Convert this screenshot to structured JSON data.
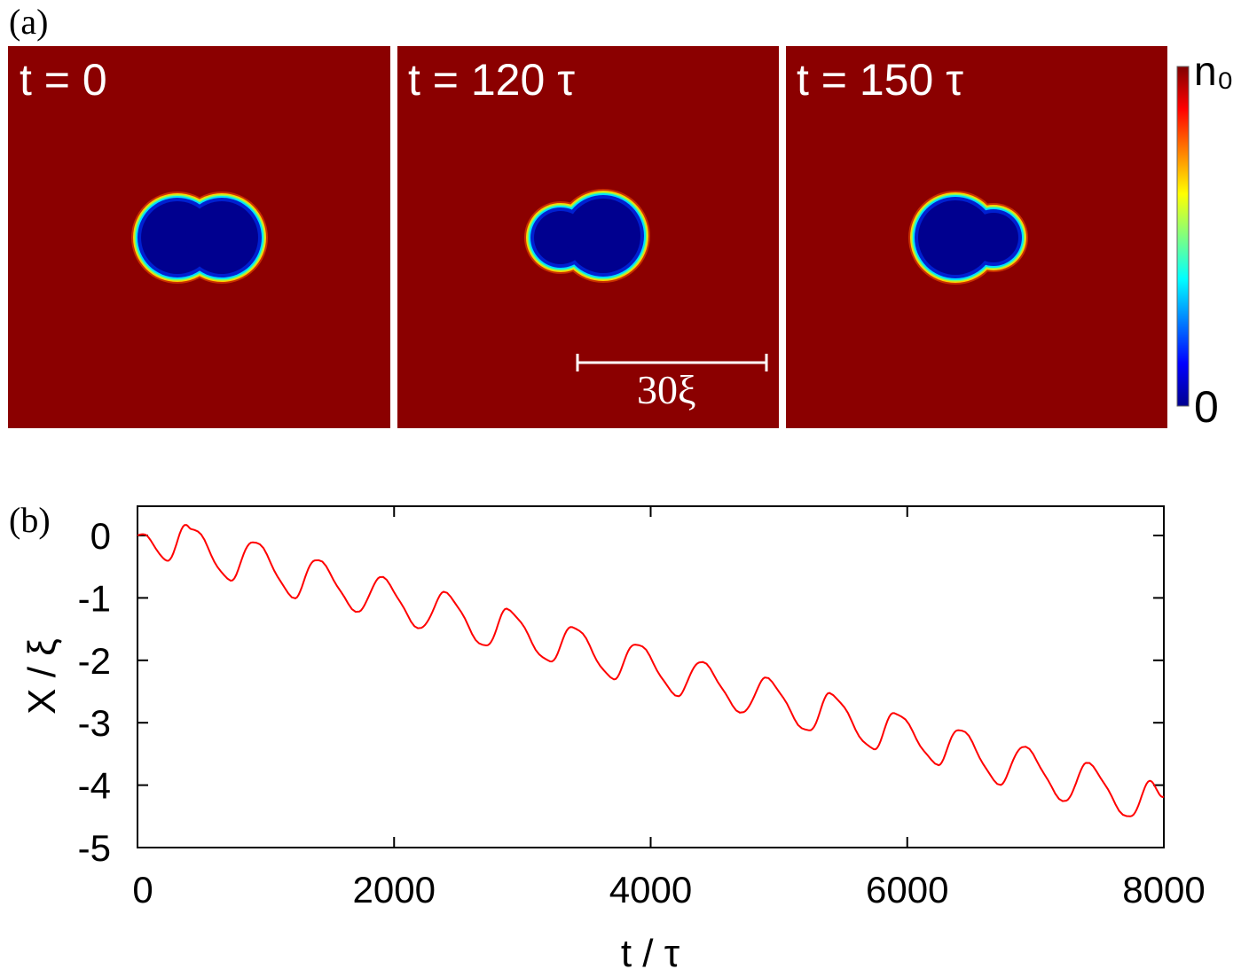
{
  "panel_a": {
    "label": "(a)",
    "frames": [
      {
        "title": "t = 0"
      },
      {
        "title": "t = 120 τ"
      },
      {
        "title": "t = 150 τ"
      }
    ],
    "scale_bar": "30ξ",
    "colorbar": {
      "max_label": "n₀",
      "min_label": "0"
    },
    "colors": {
      "background": "#8b0000",
      "core": "#00008f"
    }
  },
  "chart_data": {
    "type": "line",
    "panel_label": "(b)",
    "xlabel": "t / τ",
    "ylabel": "X / ξ",
    "xlim": [
      0,
      8000
    ],
    "ylim": [
      -5,
      0.5
    ],
    "xticks": [
      0,
      2000,
      4000,
      6000,
      8000
    ],
    "xtick_labels": [
      "0",
      "2000",
      "4000",
      "6000",
      "8000"
    ],
    "yticks": [
      0,
      -1,
      -2,
      -3,
      -4,
      -5
    ],
    "ytick_labels": [
      "0",
      "-1",
      "-2",
      "-3",
      "-4",
      "-5"
    ],
    "grid": false,
    "series": [
      {
        "name": "X",
        "color": "#ff0000",
        "x": [
          0,
          60,
          228,
          380,
          420,
          726,
          899,
          1231,
          1383,
          1729,
          1888,
          2213,
          2386,
          2718,
          2877,
          3216,
          3389,
          3714,
          3880,
          4219,
          4378,
          4724,
          4890,
          5235,
          5394,
          5740,
          5899,
          6245,
          6397,
          6729,
          6895,
          7240,
          7392,
          7738,
          7890,
          8000
        ],
        "y": [
          0.0,
          0.0,
          -0.41,
          0.16,
          0.12,
          -0.71,
          -0.09,
          -0.99,
          -0.38,
          -1.22,
          -0.67,
          -1.49,
          -0.92,
          -1.78,
          -1.19,
          -2.02,
          -1.46,
          -2.29,
          -1.73,
          -2.56,
          -2.02,
          -2.84,
          -2.29,
          -3.14,
          -2.54,
          -3.42,
          -2.84,
          -3.66,
          -3.1,
          -3.98,
          -3.38,
          -4.26,
          -3.65,
          -4.52,
          -3.95,
          -4.18
        ]
      }
    ]
  }
}
